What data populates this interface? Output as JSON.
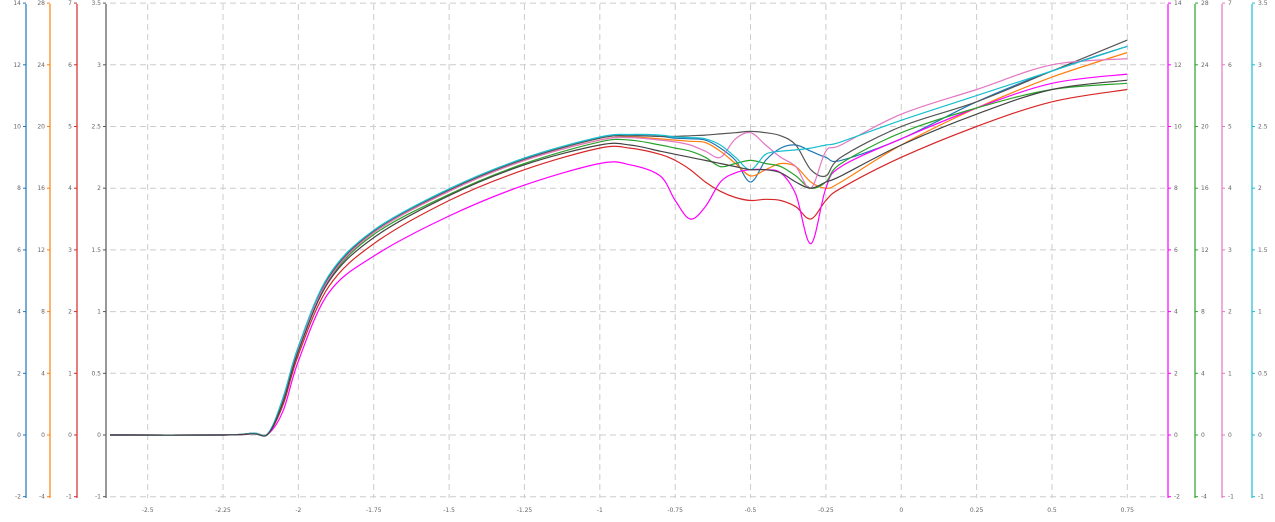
{
  "chart_data": {
    "type": "line",
    "title": "",
    "xlabel": "",
    "grid": true,
    "legend": "none",
    "x_ticks": [
      "-2.5",
      "-2.25",
      "-2",
      "-1.75",
      "-1.5",
      "-1.25",
      "-1",
      "-0.75",
      "-0.5",
      "-0.25",
      "0",
      "0.25",
      "0.5",
      "0.75"
    ],
    "xlim": [
      -2.625,
      0.875
    ],
    "ylim": [
      -1,
      7
    ],
    "y_tick_values": [
      -1,
      0,
      1,
      2,
      3,
      4,
      5,
      6,
      7
    ],
    "y_axes": [
      {
        "side": "left",
        "color": "#1f77b4",
        "label": "",
        "ticks": [
          "-2",
          "0",
          "2",
          "4",
          "6",
          "8",
          "10",
          "12",
          "14"
        ]
      },
      {
        "side": "left",
        "color": "#ff7f0e",
        "label": "",
        "ticks": [
          "-4",
          "0",
          "4",
          "8",
          "12",
          "16",
          "20",
          "24",
          "28"
        ]
      },
      {
        "side": "left",
        "color": "#d62728",
        "label": "",
        "ticks": [
          "-1",
          "0",
          "1",
          "2",
          "3",
          "4",
          "5",
          "6",
          "7"
        ]
      },
      {
        "side": "left",
        "color": "#555555",
        "label": "",
        "ticks": [
          "-1",
          "0",
          "0.5",
          "1",
          "1.5",
          "2",
          "2.5",
          "3",
          "3.5"
        ]
      },
      {
        "side": "right",
        "color": "#ff00ff",
        "label": "",
        "ticks": [
          "-2",
          "0",
          "2",
          "4",
          "6",
          "8",
          "10",
          "12",
          "14"
        ]
      },
      {
        "side": "right",
        "color": "#2ca02c",
        "label": "",
        "ticks": [
          "-4",
          "0",
          "4",
          "8",
          "12",
          "16",
          "20",
          "24",
          "28"
        ]
      },
      {
        "side": "right",
        "color": "#e377c2",
        "label": "",
        "ticks": [
          "-1",
          "0",
          "1",
          "2",
          "3",
          "4",
          "5",
          "6",
          "7"
        ]
      },
      {
        "side": "right",
        "color": "#17becf",
        "label": "",
        "ticks": [
          "-1",
          "0",
          "0.5",
          "1",
          "1.5",
          "2",
          "2.5",
          "3",
          "3.5"
        ]
      }
    ],
    "x": [
      -2.75,
      -2.25,
      -2.15,
      -2.1,
      -2.05,
      -2,
      -1.9,
      -1.75,
      -1.5,
      -1.25,
      -1,
      -0.9,
      -0.8,
      -0.75,
      -0.7,
      -0.65,
      -0.6,
      -0.55,
      -0.5,
      -0.45,
      -0.4,
      -0.35,
      -0.3,
      -0.25,
      -0.2,
      0,
      0.25,
      0.5,
      0.75
    ],
    "series": [
      {
        "color": "#1f77b4",
        "values": [
          0,
          0,
          0.03,
          0.03,
          0.6,
          1.42,
          2.55,
          3.3,
          3.97,
          4.47,
          4.81,
          4.85,
          4.84,
          4.81,
          4.8,
          4.78,
          4.65,
          4.45,
          4.1,
          4.45,
          4.65,
          4.7,
          4.6,
          4.5,
          4.45,
          4.8,
          5.4,
          5.9,
          6.3
        ]
      },
      {
        "color": "#ff7f0e",
        "values": [
          0,
          0,
          0.03,
          0.03,
          0.58,
          1.4,
          2.52,
          3.28,
          3.95,
          4.45,
          4.78,
          4.83,
          4.8,
          4.78,
          4.76,
          4.74,
          4.6,
          4.4,
          4.2,
          4.3,
          4.4,
          4.35,
          4.1,
          4.0,
          4.1,
          4.7,
          5.3,
          5.8,
          6.2
        ]
      },
      {
        "color": "#d62728",
        "values": [
          0,
          0,
          0.02,
          0.02,
          0.5,
          1.3,
          2.4,
          3.1,
          3.8,
          4.3,
          4.65,
          4.65,
          4.55,
          4.45,
          4.3,
          4.1,
          3.95,
          3.85,
          3.8,
          3.82,
          3.8,
          3.7,
          3.5,
          3.8,
          4.0,
          4.5,
          5.0,
          5.4,
          5.6
        ]
      },
      {
        "color": "#555555",
        "values": [
          0,
          0,
          0.03,
          0.03,
          0.6,
          1.42,
          2.55,
          3.3,
          3.97,
          4.47,
          4.81,
          4.85,
          4.84,
          4.84,
          4.85,
          4.86,
          4.88,
          4.9,
          4.92,
          4.9,
          4.85,
          4.7,
          4.3,
          4.2,
          4.5,
          5.0,
          5.4,
          5.9,
          6.4
        ]
      },
      {
        "color": "#ff00ff",
        "values": [
          0,
          0,
          0.02,
          0.02,
          0.4,
          1.2,
          2.3,
          2.9,
          3.55,
          4.05,
          4.4,
          4.38,
          4.2,
          3.8,
          3.5,
          3.7,
          4.1,
          4.25,
          4.3,
          4.3,
          4.25,
          3.9,
          3.1,
          4.0,
          4.35,
          4.8,
          5.3,
          5.7,
          5.85
        ]
      },
      {
        "color": "#2ca02c",
        "values": [
          0,
          0,
          0.03,
          0.03,
          0.55,
          1.38,
          2.5,
          3.25,
          3.9,
          4.4,
          4.75,
          4.78,
          4.7,
          4.65,
          4.6,
          4.5,
          4.35,
          4.4,
          4.45,
          4.4,
          4.35,
          4.2,
          4.0,
          4.1,
          4.4,
          4.9,
          5.3,
          5.6,
          5.7
        ]
      },
      {
        "color": "#e377c2",
        "values": [
          0,
          0,
          0.03,
          0.03,
          0.58,
          1.4,
          2.52,
          3.28,
          3.95,
          4.45,
          4.78,
          4.82,
          4.78,
          4.75,
          4.7,
          4.6,
          4.5,
          4.8,
          4.9,
          4.7,
          4.5,
          4.35,
          4.0,
          4.6,
          4.7,
          5.2,
          5.6,
          6.0,
          6.1
        ]
      },
      {
        "color": "#17becf",
        "values": [
          0,
          0,
          0.03,
          0.03,
          0.62,
          1.44,
          2.58,
          3.32,
          3.99,
          4.49,
          4.83,
          4.87,
          4.86,
          4.83,
          4.82,
          4.8,
          4.7,
          4.5,
          4.3,
          4.55,
          4.6,
          4.62,
          4.65,
          4.7,
          4.75,
          5.1,
          5.5,
          5.9,
          6.3
        ]
      },
      {
        "color": "#444444",
        "values": [
          0,
          0,
          0.02,
          0.02,
          0.55,
          1.36,
          2.48,
          3.2,
          3.88,
          4.38,
          4.7,
          4.7,
          4.6,
          4.55,
          4.5,
          4.45,
          4.4,
          4.35,
          4.3,
          4.3,
          4.25,
          4.1,
          4.0,
          4.1,
          4.2,
          4.7,
          5.2,
          5.6,
          5.75
        ]
      }
    ]
  }
}
